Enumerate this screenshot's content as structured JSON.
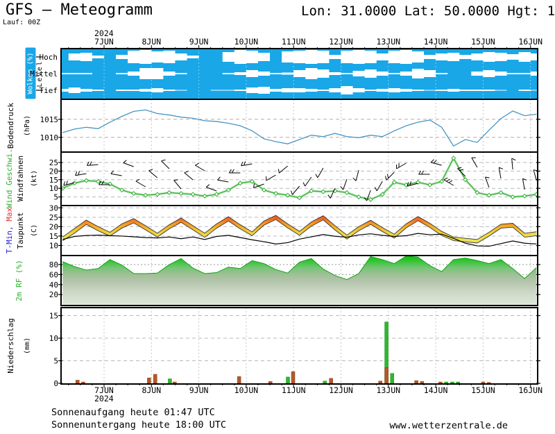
{
  "header": {
    "title": "GFS — Meteogramm",
    "location": "Lon: 31.0000 Lat: 50.0000 Hgt: 1",
    "run": "Lauf: 00Z"
  },
  "footer": {
    "sunrise": "Sonnenaufgang heute 01:47 UTC",
    "sunset": "Sonnenuntergang heute 18:00 UTC",
    "website": "www.wetterzentrale.de"
  },
  "time_axis": {
    "year": "2024",
    "days": [
      "7JUN",
      "8JUN",
      "9JUN",
      "10JUN",
      "11JUN",
      "12JUN",
      "13JUN",
      "14JUN",
      "15JUN",
      "16JUN"
    ],
    "x_start_day": -0.875,
    "x_step_days": 0.25,
    "n_points": 41
  },
  "colors": {
    "cloud_bg": "#19a7e8",
    "cloud_fill": "#ffffff",
    "pressure_line": "#4695c4",
    "wind_line": "#2faf2f",
    "temp_red": "#e62e2e",
    "temp_orange": "#f6921f",
    "temp_yellow": "#eedd48",
    "rf_green": "#00c400",
    "precip_brown": "#b2592b",
    "precip_green": "#2eb82e"
  },
  "chart_data": [
    {
      "id": "clouds",
      "type": "area",
      "title": "Wolken (%)",
      "level_label": "Level",
      "levels": [
        "Hoch",
        "Mittel",
        "Tief"
      ],
      "series": {
        "hoch": [
          0,
          0.5,
          0.6,
          0.2,
          0,
          0.3,
          0.9,
          1,
          0.8,
          0.9,
          0.5,
          0.2,
          0,
          0,
          0.7,
          1,
          0.9,
          0.6,
          0,
          0.8,
          0.9,
          1,
          0.9,
          0.3,
          0.9,
          1,
          0.9,
          0.5,
          0.9,
          1,
          0.8,
          0.3,
          0.5,
          0.6,
          0.3,
          0.5,
          0.7,
          0.6,
          0.4,
          0.7,
          0.5
        ],
        "mittel": [
          0.1,
          0.1,
          0.1,
          0,
          0,
          0.1,
          0.3,
          0.8,
          0.8,
          0.3,
          0.1,
          0,
          0,
          0,
          0.1,
          0.2,
          0.5,
          0.3,
          0.1,
          0.15,
          0.5,
          0.8,
          0.6,
          0.2,
          0.1,
          0.4,
          0.6,
          0.3,
          0.1,
          0.3,
          0.7,
          0.5,
          0.1,
          0,
          0,
          0.3,
          0.5,
          0.3,
          0.1,
          0.1,
          0.3
        ],
        "tief": [
          0.2,
          0.4,
          0.2,
          0.1,
          0,
          0.1,
          0.1,
          0.2,
          0.3,
          0.1,
          0.05,
          0,
          0,
          0.05,
          0.05,
          0.1,
          0.4,
          0.5,
          0.2,
          0.3,
          0.3,
          0.2,
          0.1,
          0.3,
          0.6,
          0.3,
          0.1,
          0.2,
          0.3,
          0.2,
          0.1,
          0.05,
          0.1,
          0.2,
          0.1,
          0.1,
          0.1,
          0.05,
          0,
          0.1,
          0.05
        ]
      }
    },
    {
      "id": "pressure",
      "type": "line",
      "ylabel": "Bodendruck",
      "unit": "(hPa)",
      "yticks": [
        1015,
        1010
      ],
      "values": [
        1011.3,
        1012.3,
        1012.8,
        1012.4,
        1014.2,
        1015.8,
        1017.2,
        1017.6,
        1016.6,
        1016.2,
        1015.6,
        1015.3,
        1014.6,
        1014.4,
        1013.9,
        1013.2,
        1011.8,
        1009.6,
        1008.8,
        1008.2,
        1009.4,
        1010.6,
        1010.2,
        1011.1,
        1010.2,
        1009.9,
        1010.6,
        1010.2,
        1011.8,
        1013.2,
        1014.2,
        1014.8,
        1012.8,
        1007.6,
        1009.4,
        1008.6,
        1012.0,
        1015.2,
        1017.3,
        1016.0,
        1016.4
      ]
    },
    {
      "id": "wind",
      "type": "line+barbs",
      "ylabel": "Wind Geschwi.",
      "ylabel2": "Windfahnen",
      "unit": "(kt)",
      "yticks": [
        25,
        20,
        15,
        10,
        5
      ],
      "speed_kt": [
        10,
        13,
        14.5,
        14,
        12.5,
        9,
        7,
        6,
        6.5,
        7.5,
        7,
        6.5,
        5.5,
        6.5,
        9,
        13,
        14,
        9,
        7,
        6,
        4.5,
        8.5,
        8,
        8.5,
        7.5,
        5,
        3.5,
        6.5,
        13.5,
        12,
        13.5,
        12,
        14,
        27.5,
        15,
        7.5,
        6,
        7.5,
        5,
        5.5,
        6.5
      ],
      "direction_deg": [
        250,
        255,
        260,
        265,
        270,
        280,
        290,
        300,
        310,
        315,
        320,
        310,
        300,
        290,
        280,
        270,
        260,
        250,
        240,
        230,
        220,
        215,
        210,
        205,
        200,
        195,
        200,
        210,
        225,
        240,
        255,
        270,
        285,
        300,
        315,
        330,
        340,
        350,
        355,
        350,
        345
      ]
    },
    {
      "id": "temperature",
      "type": "band+line",
      "ylabel_min": "T-Min,",
      "ylabel_max": "Max",
      "ylabel2": "Taupunkt",
      "unit": "(C)",
      "yticks": [
        30,
        25,
        20,
        15,
        10
      ],
      "t_max": [
        14.5,
        19,
        23.5,
        20,
        17,
        21.5,
        24.3,
        20.5,
        16.5,
        21,
        24.6,
        20.5,
        16.5,
        21.5,
        25.3,
        21,
        17.2,
        23,
        26,
        21.5,
        17.5,
        22.5,
        25.8,
        20.5,
        15.5,
        20,
        23.4,
        19.5,
        16,
        21.5,
        25.4,
        21.8,
        17.5,
        14.5,
        13.8,
        13.2,
        17,
        21.3,
        21.8,
        16.5,
        17.3
      ],
      "t_min": [
        12.5,
        16.5,
        21.2,
        17.8,
        15,
        19.2,
        22,
        18.3,
        14.5,
        18.8,
        22.3,
        18.3,
        14.3,
        19.2,
        23,
        18.8,
        15.2,
        20.8,
        23.8,
        19.3,
        15.4,
        20.3,
        23.6,
        18.2,
        13.4,
        17.8,
        21.2,
        17.4,
        13.9,
        19.3,
        23.2,
        19.6,
        15.3,
        12.6,
        11.9,
        11.3,
        15,
        19.2,
        19.7,
        14.4,
        15.2
      ],
      "dewpoint": [
        13.2,
        14.8,
        15.3,
        15.5,
        15.2,
        15.0,
        14.6,
        14.2,
        14.0,
        14.5,
        13.6,
        14.5,
        13.2,
        14.8,
        15.4,
        14.2,
        13.0,
        12.0,
        10.8,
        11.5,
        13.4,
        14.6,
        15.8,
        14.9,
        14.4,
        15.6,
        16.2,
        15.4,
        14.8,
        15.2,
        16.4,
        15.7,
        16.0,
        13.8,
        11.2,
        9.8,
        9.6,
        11.0,
        12.4,
        11.2,
        10.8
      ]
    },
    {
      "id": "humidity",
      "type": "area",
      "ylabel": "2m RF (%)",
      "yticks": [
        80,
        60,
        40,
        20
      ],
      "values_pct": [
        86,
        76,
        69,
        72,
        90,
        79,
        62,
        62,
        63,
        80,
        92,
        73,
        62,
        64,
        75,
        72,
        88,
        82,
        70,
        63,
        85,
        92,
        71,
        58,
        50,
        62,
        96,
        90,
        82,
        97,
        95,
        78,
        66,
        90,
        93,
        88,
        82,
        90,
        72,
        52,
        74
      ]
    },
    {
      "id": "precipitation",
      "type": "bar",
      "ylabel": "Niederschlag",
      "unit": "(mm)",
      "yticks": [
        15,
        10,
        5,
        0
      ],
      "bars": [
        {
          "d": -0.56,
          "h": 0.7,
          "c": "brown"
        },
        {
          "d": -0.44,
          "h": 0.3,
          "c": "brown"
        },
        {
          "d": 0.95,
          "h": 1.2,
          "c": "brown"
        },
        {
          "d": 1.08,
          "h": 2.0,
          "c": "brown"
        },
        {
          "d": 1.39,
          "h": 1.0,
          "c": "green"
        },
        {
          "d": 1.49,
          "h": 0.3,
          "c": "brown"
        },
        {
          "d": 2.85,
          "h": 1.5,
          "c": "brown"
        },
        {
          "d": 3.51,
          "h": 0.4,
          "c": "brown"
        },
        {
          "d": 3.88,
          "h": 1.4,
          "c": "green"
        },
        {
          "d": 3.99,
          "h": 2.6,
          "c": "brown"
        },
        {
          "d": 4.66,
          "h": 0.5,
          "c": "green"
        },
        {
          "d": 4.79,
          "h": 1.1,
          "c": "brown"
        },
        {
          "d": 5.83,
          "h": 0.5,
          "c": "brown"
        },
        {
          "d": 5.96,
          "h": 13.6,
          "c": "green"
        },
        {
          "d": 5.96,
          "h": 3.5,
          "c": "brown"
        },
        {
          "d": 6.08,
          "h": 2.2,
          "c": "green"
        },
        {
          "d": 6.59,
          "h": 0.6,
          "c": "brown"
        },
        {
          "d": 6.71,
          "h": 0.4,
          "c": "brown"
        },
        {
          "d": 7.1,
          "h": 0.3,
          "c": "brown"
        },
        {
          "d": 7.22,
          "h": 0.3,
          "c": "green"
        },
        {
          "d": 7.35,
          "h": 0.3,
          "c": "green"
        },
        {
          "d": 7.47,
          "h": 0.3,
          "c": "green"
        },
        {
          "d": 8.0,
          "h": 0.3,
          "c": "brown"
        },
        {
          "d": 8.12,
          "h": 0.2,
          "c": "brown"
        }
      ]
    }
  ]
}
